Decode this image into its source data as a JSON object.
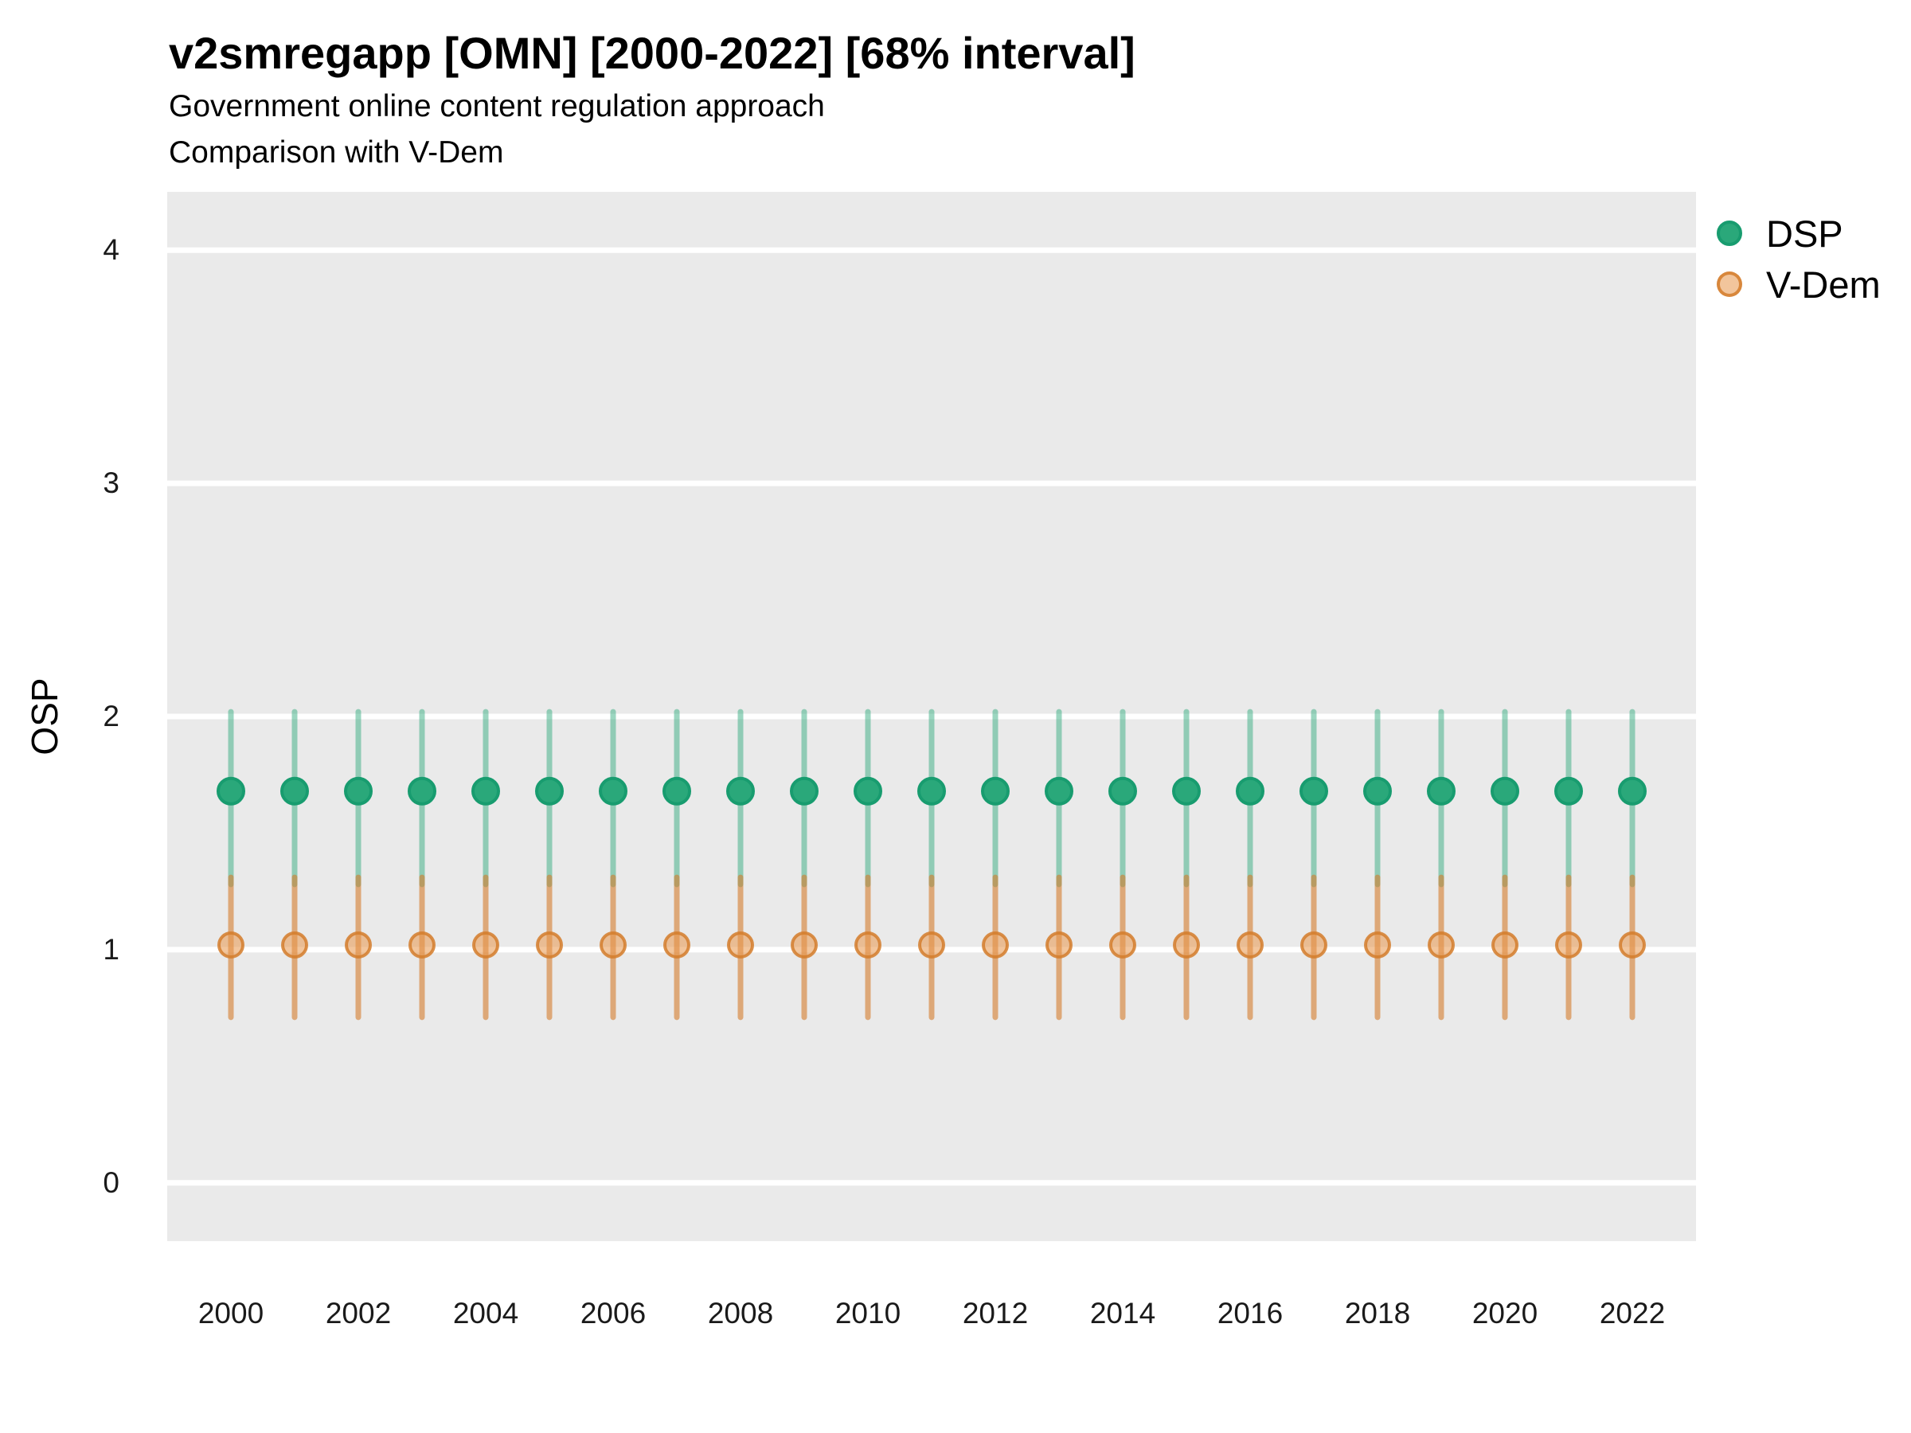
{
  "title": "v2smregapp [OMN] [2000-2022] [68% interval]",
  "subtitle1": "Government online content regulation approach",
  "subtitle2": "Comparison with V-Dem",
  "y_axis_title": "OSP",
  "legend": {
    "items": [
      {
        "label": "DSP"
      },
      {
        "label": "V-Dem"
      }
    ]
  },
  "colors": {
    "panel_bg": "#EAEAEA",
    "gridline": "#FFFFFF",
    "dsp_point_fill": "#2AA87A",
    "dsp_point_stroke": "#189C6F",
    "dsp_range_line": "rgba(42,168,122,0.47)",
    "vdem_point_fill": "rgba(232,150,75,0.55)",
    "vdem_point_stroke": "rgba(211,124,44,0.85)",
    "vdem_range_line": "rgba(211,124,44,0.6)",
    "tick_label": "#1a1a1a"
  },
  "chart_data": {
    "type": "scatter",
    "subtype": "pointrange",
    "title": "v2smregapp [OMN] [2000-2022] [68% interval]",
    "subtitle": "Government online content regulation approach | Comparison with V-Dem",
    "xlabel": "",
    "ylabel": "OSP",
    "ylim": [
      -0.25,
      4.25
    ],
    "y_ticks": [
      0,
      1,
      2,
      3,
      4
    ],
    "x_tick_labels": [
      "2000",
      "2002",
      "2004",
      "2006",
      "2008",
      "2010",
      "2012",
      "2014",
      "2016",
      "2018",
      "2020",
      "2022"
    ],
    "x_tick_years": [
      2000,
      2002,
      2004,
      2006,
      2008,
      2010,
      2012,
      2014,
      2016,
      2018,
      2020,
      2022
    ],
    "grid": "horizontal-major-only",
    "legend_position": "right",
    "interval_note": "68% interval",
    "x": [
      2000,
      2001,
      2002,
      2003,
      2004,
      2005,
      2006,
      2007,
      2008,
      2009,
      2010,
      2011,
      2012,
      2013,
      2014,
      2015,
      2016,
      2017,
      2018,
      2019,
      2020,
      2021,
      2022
    ],
    "series": [
      {
        "name": "DSP",
        "median": [
          1.68,
          1.68,
          1.68,
          1.68,
          1.68,
          1.68,
          1.68,
          1.68,
          1.68,
          1.68,
          1.68,
          1.68,
          1.68,
          1.68,
          1.68,
          1.68,
          1.68,
          1.68,
          1.68,
          1.68,
          1.68,
          1.68,
          1.68
        ],
        "lo": [
          1.28,
          1.28,
          1.28,
          1.28,
          1.28,
          1.28,
          1.28,
          1.28,
          1.28,
          1.28,
          1.28,
          1.28,
          1.28,
          1.28,
          1.28,
          1.28,
          1.28,
          1.28,
          1.28,
          1.28,
          1.28,
          1.28,
          1.28
        ],
        "hi": [
          2.02,
          2.02,
          2.02,
          2.02,
          2.02,
          2.02,
          2.02,
          2.02,
          2.02,
          2.02,
          2.02,
          2.02,
          2.02,
          2.02,
          2.02,
          2.02,
          2.02,
          2.02,
          2.02,
          2.02,
          2.02,
          2.02,
          2.02
        ]
      },
      {
        "name": "V-Dem",
        "median": [
          1.02,
          1.02,
          1.02,
          1.02,
          1.02,
          1.02,
          1.02,
          1.02,
          1.02,
          1.02,
          1.02,
          1.02,
          1.02,
          1.02,
          1.02,
          1.02,
          1.02,
          1.02,
          1.02,
          1.02,
          1.02,
          1.02,
          1.02
        ],
        "lo": [
          0.71,
          0.71,
          0.71,
          0.71,
          0.71,
          0.71,
          0.71,
          0.71,
          0.71,
          0.71,
          0.71,
          0.71,
          0.71,
          0.71,
          0.71,
          0.71,
          0.71,
          0.71,
          0.71,
          0.71,
          0.71,
          0.71,
          0.71
        ],
        "hi": [
          1.31,
          1.31,
          1.31,
          1.31,
          1.31,
          1.31,
          1.31,
          1.31,
          1.31,
          1.31,
          1.31,
          1.31,
          1.31,
          1.31,
          1.31,
          1.31,
          1.31,
          1.31,
          1.31,
          1.31,
          1.31,
          1.31,
          1.31
        ]
      }
    ]
  }
}
